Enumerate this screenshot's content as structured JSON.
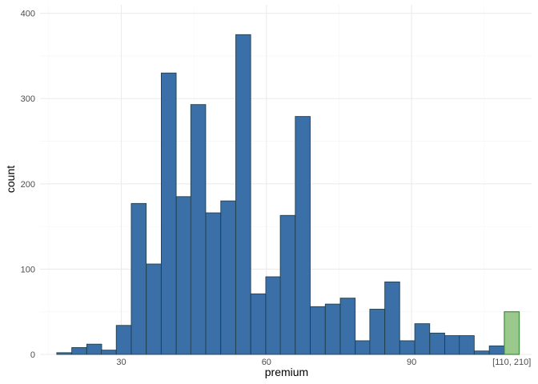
{
  "chart_data": {
    "type": "bar",
    "xlabel": "premium",
    "ylabel": "count",
    "ylim": [
      0,
      410
    ],
    "xlim": [
      13.2,
      114.8
    ],
    "x_ticks": [
      30,
      60,
      90
    ],
    "x_tick_labels": [
      "30",
      "60",
      "90"
    ],
    "y_ticks": [
      0,
      100,
      200,
      300,
      400
    ],
    "y_tick_labels": [
      "0",
      "100",
      "200",
      "300",
      "400"
    ],
    "bin_width": 3.08,
    "grid": true,
    "bins": [
      {
        "x": 18.2,
        "count": 2
      },
      {
        "x": 21.3,
        "count": 8
      },
      {
        "x": 24.4,
        "count": 12
      },
      {
        "x": 27.4,
        "count": 5
      },
      {
        "x": 30.5,
        "count": 34
      },
      {
        "x": 33.6,
        "count": 177
      },
      {
        "x": 36.7,
        "count": 106
      },
      {
        "x": 39.8,
        "count": 330
      },
      {
        "x": 42.9,
        "count": 185
      },
      {
        "x": 45.9,
        "count": 293
      },
      {
        "x": 49.0,
        "count": 166
      },
      {
        "x": 52.1,
        "count": 180
      },
      {
        "x": 55.2,
        "count": 375
      },
      {
        "x": 58.3,
        "count": 71
      },
      {
        "x": 61.4,
        "count": 91
      },
      {
        "x": 64.4,
        "count": 163
      },
      {
        "x": 67.5,
        "count": 279
      },
      {
        "x": 70.6,
        "count": 56
      },
      {
        "x": 73.7,
        "count": 59
      },
      {
        "x": 76.8,
        "count": 66
      },
      {
        "x": 79.9,
        "count": 16
      },
      {
        "x": 82.9,
        "count": 53
      },
      {
        "x": 86.0,
        "count": 85
      },
      {
        "x": 89.1,
        "count": 16
      },
      {
        "x": 92.2,
        "count": 36
      },
      {
        "x": 95.3,
        "count": 25
      },
      {
        "x": 98.4,
        "count": 22
      },
      {
        "x": 101.4,
        "count": 22
      },
      {
        "x": 104.5,
        "count": 4
      },
      {
        "x": 107.6,
        "count": 10
      }
    ],
    "overflow_bin": {
      "label": "[110, 210]",
      "x": 110.7,
      "count": 50
    },
    "colors": {
      "bar_fill": "#3a6fa8",
      "bar_stroke": "#22404e",
      "overflow_fill": "#9bc98d",
      "overflow_stroke": "#3d8f3d",
      "grid_major": "#ebebeb",
      "grid_minor": "#f5f5f5"
    }
  }
}
